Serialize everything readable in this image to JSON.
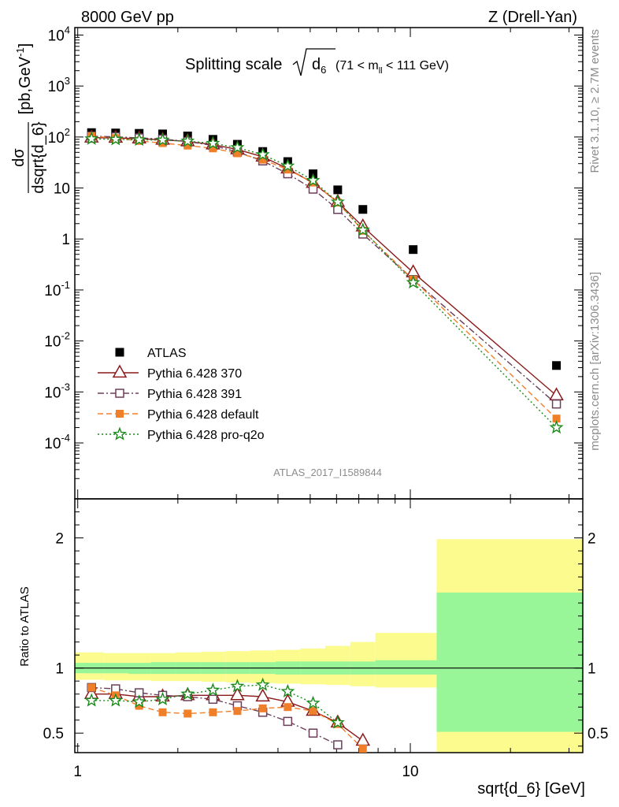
{
  "header": {
    "left": "8000 GeV pp",
    "right": "Z (Drell-Yan)"
  },
  "side": {
    "rivet": "Rivet 3.1.10, ≥ 2.7M events",
    "source": "mcplots.cern.ch [arXiv:1306.3436]"
  },
  "watermark": "ATLAS_2017_I1589844",
  "chart_data": [
    {
      "type": "scatter",
      "panel": "main",
      "title_main": "Splitting scale",
      "title_sqrt_symbol": "d",
      "title_sqrt_sub": "6",
      "title_range_pre": "(71 < m",
      "title_range_sub": "ll",
      "title_range_post": " < 111 GeV)",
      "ylabel_num": "dσ",
      "ylabel_den": "dsqrt{d_6}",
      "ylabel_unit": "[pb,GeV",
      "ylabel_unit_exp": "-1",
      "ylabel_unit_close": "]",
      "xscale": "log",
      "yscale": "log",
      "xlim": [
        0.98,
        33
      ],
      "ylim": [
        8e-06,
        14000
      ],
      "yticks": [
        {
          "v": 0.0001,
          "base": "10",
          "exp": "-4"
        },
        {
          "v": 0.001,
          "base": "10",
          "exp": "-3"
        },
        {
          "v": 0.01,
          "base": "10",
          "exp": "-2"
        },
        {
          "v": 0.1,
          "base": "10",
          "exp": "-1"
        },
        {
          "v": 1,
          "base": "1",
          "exp": ""
        },
        {
          "v": 10,
          "base": "10",
          "exp": ""
        },
        {
          "v": 100,
          "base": "10",
          "exp": "2"
        },
        {
          "v": 1000,
          "base": "10",
          "exp": "3"
        },
        {
          "v": 10000,
          "base": "10",
          "exp": "4"
        }
      ],
      "legend_position": "bottom-left",
      "series": [
        {
          "name": "ATLAS",
          "color": "#000000",
          "marker": "square-filled",
          "line": "none",
          "x": [
            1.1,
            1.3,
            1.53,
            1.8,
            2.14,
            2.55,
            3.02,
            3.6,
            4.28,
            5.1,
            6.05,
            7.2,
            10.2,
            27.5
          ],
          "y": [
            122,
            120,
            118,
            115,
            105,
            90,
            72,
            52,
            33,
            19,
            9.2,
            3.8,
            0.62,
            0.0033
          ]
        },
        {
          "name": "Pythia 6.428 370",
          "color": "#8b1a1a",
          "marker": "triangle-open",
          "line": "solid",
          "x": [
            1.1,
            1.3,
            1.53,
            1.8,
            2.14,
            2.55,
            3.02,
            3.6,
            4.28,
            5.1,
            6.05,
            7.2,
            10.2,
            27.5
          ],
          "y": [
            97,
            96,
            93,
            88,
            82,
            71,
            57,
            41,
            24,
            12.5,
            5.3,
            1.75,
            0.22,
            0.00085
          ]
        },
        {
          "name": "Pythia 6.428 391",
          "color": "#6b3f5a",
          "marker": "square-open",
          "line": "dashdot",
          "x": [
            1.1,
            1.3,
            1.53,
            1.8,
            2.14,
            2.55,
            3.02,
            3.6,
            4.28,
            5.1,
            6.05,
            7.2,
            10.2,
            27.5
          ],
          "y": [
            104,
            101,
            96,
            91,
            82,
            68,
            51,
            34,
            19,
            9.5,
            3.8,
            1.25,
            0.16,
            0.00058
          ]
        },
        {
          "name": "Pythia 6.428 default",
          "color": "#f07f2a",
          "marker": "square-filled",
          "line": "dashed",
          "x": [
            1.1,
            1.3,
            1.53,
            1.8,
            2.14,
            2.55,
            3.02,
            3.6,
            4.28,
            5.1,
            6.05,
            7.2,
            10.2,
            27.5
          ],
          "y": [
            104,
            95,
            84,
            76,
            68,
            60,
            48,
            36,
            23,
            12.8,
            5.2,
            1.45,
            0.16,
            0.0003
          ]
        },
        {
          "name": "Pythia 6.428 pro-q2o",
          "color": "#1a8a1a",
          "marker": "star-open",
          "line": "dotted",
          "x": [
            1.1,
            1.3,
            1.53,
            1.8,
            2.14,
            2.55,
            3.02,
            3.6,
            4.28,
            5.1,
            6.05,
            7.2,
            10.2,
            27.5
          ],
          "y": [
            92,
            90,
            88,
            87,
            83,
            75,
            62,
            45,
            27,
            14,
            5.3,
            1.5,
            0.14,
            0.0002
          ]
        }
      ]
    },
    {
      "type": "line",
      "panel": "ratio",
      "ylabel": "Ratio to ATLAS",
      "xlabel": "sqrt{d_6} [GeV]",
      "xscale": "log",
      "xlim": [
        0.98,
        33
      ],
      "ylim": [
        0.35,
        2.3
      ],
      "yticks": [
        {
          "v": 0.5,
          "label": "0.5"
        },
        {
          "v": 1,
          "label": "1"
        },
        {
          "v": 2,
          "label": "2"
        }
      ],
      "xticks": [
        {
          "v": 1,
          "label": "1"
        },
        {
          "v": 10,
          "label": "10"
        }
      ],
      "uncertainty_bins": {
        "edges": [
          0.98,
          1.2,
          1.42,
          1.66,
          1.97,
          2.35,
          2.78,
          3.3,
          3.93,
          4.67,
          5.55,
          6.6,
          7.85,
          12.0,
          33
        ],
        "stat_lo": [
          0.96,
          0.96,
          0.955,
          0.955,
          0.955,
          0.955,
          0.955,
          0.955,
          0.95,
          0.95,
          0.95,
          0.95,
          0.95,
          0.51
        ],
        "stat_hi": [
          1.04,
          1.04,
          1.04,
          1.045,
          1.045,
          1.045,
          1.045,
          1.045,
          1.05,
          1.05,
          1.05,
          1.05,
          1.06,
          1.58
        ],
        "tot_lo": [
          0.91,
          0.905,
          0.905,
          0.9,
          0.9,
          0.895,
          0.89,
          0.885,
          0.88,
          0.875,
          0.87,
          0.86,
          0.85,
          0.35
        ],
        "tot_hi": [
          1.12,
          1.115,
          1.115,
          1.115,
          1.12,
          1.125,
          1.13,
          1.135,
          1.14,
          1.15,
          1.17,
          1.2,
          1.27,
          1.99
        ],
        "stat_color": "#98f598",
        "tot_color": "#fbfb8e"
      },
      "series": [
        {
          "name": "Pythia 6.428 370",
          "color": "#8b1a1a",
          "x": [
            1.1,
            1.3,
            1.53,
            1.8,
            2.14,
            2.55,
            3.02,
            3.6,
            4.28,
            5.1,
            6.05,
            7.2
          ],
          "y": [
            0.8,
            0.8,
            0.78,
            0.78,
            0.79,
            0.79,
            0.79,
            0.78,
            0.74,
            0.67,
            0.58,
            0.44
          ]
        },
        {
          "name": "Pythia 6.428 391",
          "color": "#6b3f5a",
          "x": [
            1.1,
            1.3,
            1.53,
            1.8,
            2.14,
            2.55,
            3.02,
            3.6,
            4.28,
            5.1,
            6.05
          ],
          "y": [
            0.85,
            0.84,
            0.81,
            0.79,
            0.78,
            0.76,
            0.71,
            0.66,
            0.59,
            0.5,
            0.41
          ]
        },
        {
          "name": "Pythia 6.428 default",
          "color": "#f07f2a",
          "x": [
            1.1,
            1.3,
            1.53,
            1.8,
            2.14,
            2.55,
            3.02,
            3.6,
            4.28,
            5.1,
            6.05,
            7.2
          ],
          "y": [
            0.85,
            0.79,
            0.71,
            0.66,
            0.65,
            0.66,
            0.67,
            0.69,
            0.7,
            0.67,
            0.57,
            0.38
          ]
        },
        {
          "name": "Pythia 6.428 pro-q2o",
          "color": "#1a8a1a",
          "x": [
            1.1,
            1.3,
            1.53,
            1.8,
            2.14,
            2.55,
            3.02,
            3.6,
            4.28,
            5.1,
            6.05
          ],
          "y": [
            0.75,
            0.75,
            0.74,
            0.76,
            0.8,
            0.83,
            0.86,
            0.87,
            0.82,
            0.73,
            0.58
          ]
        }
      ]
    }
  ]
}
